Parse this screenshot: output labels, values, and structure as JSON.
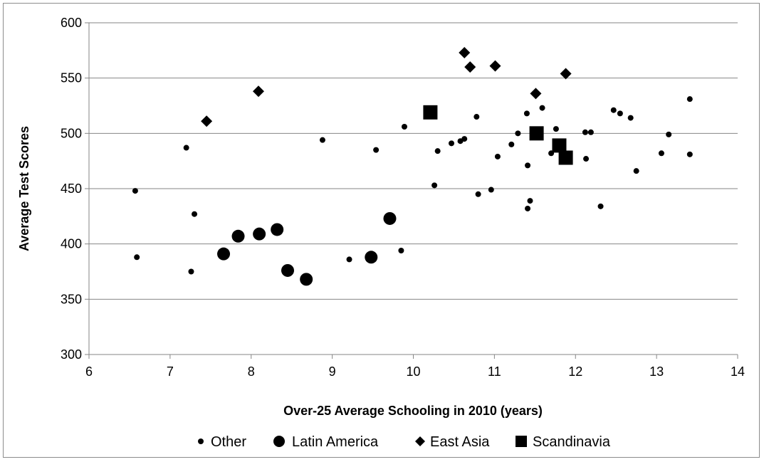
{
  "chart_data": {
    "type": "scatter",
    "title": "",
    "xlabel": "Over-25 Average Schooling in 2010  (years)",
    "ylabel": "Average Test Scores",
    "xlim": [
      6,
      14
    ],
    "ylim": [
      300,
      600
    ],
    "x_ticks": [
      6,
      7,
      8,
      9,
      10,
      11,
      12,
      13,
      14
    ],
    "y_ticks": [
      300,
      350,
      400,
      450,
      500,
      550,
      600
    ],
    "grid": "horizontal",
    "legend_position": "bottom",
    "series": [
      {
        "name": "Other",
        "marker": "small-circle",
        "color": "#000000",
        "points": [
          [
            6.57,
            448
          ],
          [
            6.59,
            388
          ],
          [
            7.2,
            487
          ],
          [
            7.26,
            375
          ],
          [
            7.3,
            427
          ],
          [
            8.88,
            494
          ],
          [
            9.21,
            386
          ],
          [
            9.54,
            485
          ],
          [
            9.85,
            394
          ],
          [
            9.89,
            506
          ],
          [
            10.26,
            453
          ],
          [
            10.3,
            484
          ],
          [
            10.47,
            491
          ],
          [
            10.58,
            493
          ],
          [
            10.63,
            495
          ],
          [
            10.78,
            515
          ],
          [
            10.8,
            445
          ],
          [
            10.96,
            449
          ],
          [
            11.04,
            479
          ],
          [
            11.21,
            490
          ],
          [
            11.29,
            500
          ],
          [
            11.4,
            518
          ],
          [
            11.41,
            432
          ],
          [
            11.41,
            471
          ],
          [
            11.44,
            439
          ],
          [
            11.59,
            523
          ],
          [
            11.7,
            482
          ],
          [
            11.76,
            504
          ],
          [
            12.12,
            501
          ],
          [
            12.13,
            477
          ],
          [
            12.19,
            501
          ],
          [
            12.31,
            434
          ],
          [
            12.47,
            521
          ],
          [
            12.55,
            518
          ],
          [
            12.68,
            514
          ],
          [
            12.75,
            466
          ],
          [
            13.06,
            482
          ],
          [
            13.15,
            499
          ],
          [
            13.41,
            531
          ],
          [
            13.41,
            481
          ]
        ]
      },
      {
        "name": "Latin America",
        "marker": "large-circle",
        "color": "#000000",
        "points": [
          [
            7.66,
            391
          ],
          [
            7.84,
            407
          ],
          [
            8.1,
            409
          ],
          [
            8.32,
            413
          ],
          [
            8.45,
            376
          ],
          [
            8.68,
            368
          ],
          [
            9.48,
            388
          ],
          [
            9.71,
            423
          ]
        ]
      },
      {
        "name": "East Asia",
        "marker": "diamond",
        "color": "#000000",
        "points": [
          [
            7.45,
            511
          ],
          [
            8.09,
            538
          ],
          [
            10.63,
            573
          ],
          [
            10.7,
            560
          ],
          [
            11.01,
            561
          ],
          [
            11.51,
            536
          ],
          [
            11.88,
            554
          ]
        ]
      },
      {
        "name": "Scandinavia",
        "marker": "square",
        "color": "#000000",
        "points": [
          [
            10.21,
            519
          ],
          [
            11.52,
            500
          ],
          [
            11.8,
            489
          ],
          [
            11.88,
            478
          ]
        ]
      }
    ]
  }
}
